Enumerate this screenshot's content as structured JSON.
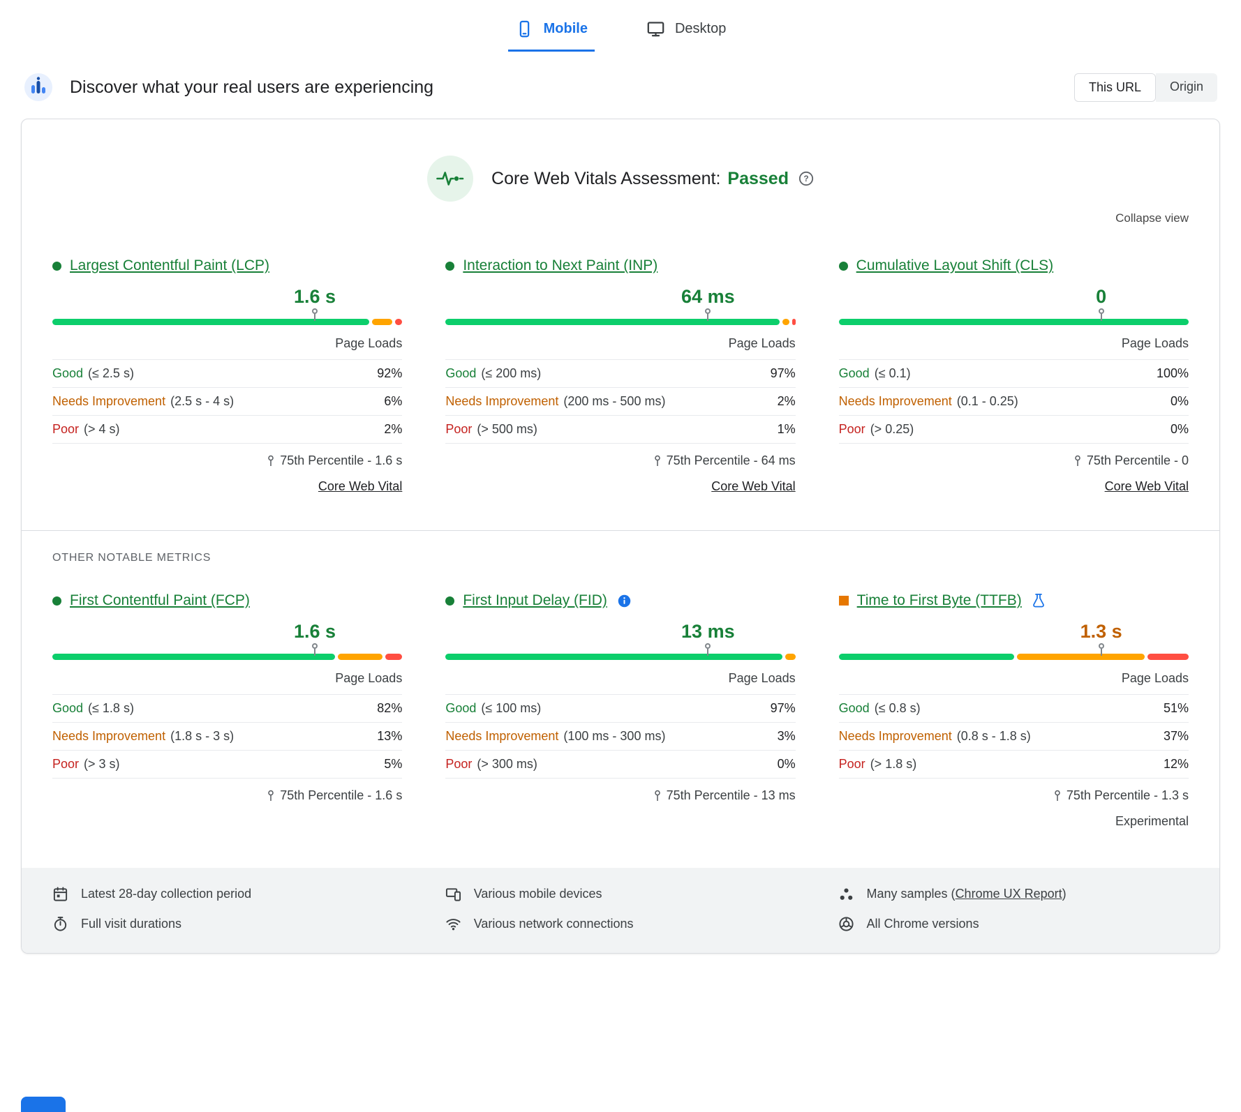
{
  "tabs": {
    "mobile": "Mobile",
    "desktop": "Desktop"
  },
  "header": {
    "title": "Discover what your real users are experiencing",
    "this_url": "This URL",
    "origin": "Origin"
  },
  "assessment": {
    "label": "Core Web Vitals Assessment:",
    "result": "Passed",
    "collapse": "Collapse view"
  },
  "sections": {
    "other_metrics": "OTHER NOTABLE METRICS"
  },
  "metrics": [
    {
      "name": "Largest Contentful Paint (LCP)",
      "value": "1.6 s",
      "page_loads": "Page Loads",
      "rows": [
        {
          "label": "Good",
          "range": "(≤ 2.5 s)",
          "pct": "92%"
        },
        {
          "label": "Needs Improvement",
          "range": "(2.5 s - 4 s)",
          "pct": "6%"
        },
        {
          "label": "Poor",
          "range": "(> 4 s)",
          "pct": "2%"
        }
      ],
      "percentile": "75th Percentile - 1.6 s",
      "link": "Core Web Vital",
      "bar": {
        "good": 92,
        "ni": 6,
        "poor": 2,
        "marker": 75
      }
    },
    {
      "name": "Interaction to Next Paint (INP)",
      "value": "64 ms",
      "page_loads": "Page Loads",
      "rows": [
        {
          "label": "Good",
          "range": "(≤ 200 ms)",
          "pct": "97%"
        },
        {
          "label": "Needs Improvement",
          "range": "(200 ms - 500 ms)",
          "pct": "2%"
        },
        {
          "label": "Poor",
          "range": "(> 500 ms)",
          "pct": "1%"
        }
      ],
      "percentile": "75th Percentile - 64 ms",
      "link": "Core Web Vital",
      "bar": {
        "good": 97,
        "ni": 2,
        "poor": 1,
        "marker": 75
      }
    },
    {
      "name": "Cumulative Layout Shift (CLS)",
      "value": "0",
      "page_loads": "Page Loads",
      "rows": [
        {
          "label": "Good",
          "range": "(≤ 0.1)",
          "pct": "100%"
        },
        {
          "label": "Needs Improvement",
          "range": "(0.1 - 0.25)",
          "pct": "0%"
        },
        {
          "label": "Poor",
          "range": "(> 0.25)",
          "pct": "0%"
        }
      ],
      "percentile": "75th Percentile - 0",
      "link": "Core Web Vital",
      "bar": {
        "good": 100,
        "ni": 0,
        "poor": 0,
        "marker": 75
      }
    },
    {
      "name": "First Contentful Paint (FCP)",
      "value": "1.6 s",
      "page_loads": "Page Loads",
      "rows": [
        {
          "label": "Good",
          "range": "(≤ 1.8 s)",
          "pct": "82%"
        },
        {
          "label": "Needs Improvement",
          "range": "(1.8 s - 3 s)",
          "pct": "13%"
        },
        {
          "label": "Poor",
          "range": "(> 3 s)",
          "pct": "5%"
        }
      ],
      "percentile": "75th Percentile - 1.6 s",
      "bar": {
        "good": 82,
        "ni": 13,
        "poor": 5,
        "marker": 75
      }
    },
    {
      "name": "First Input Delay (FID)",
      "value": "13 ms",
      "page_loads": "Page Loads",
      "rows": [
        {
          "label": "Good",
          "range": "(≤ 100 ms)",
          "pct": "97%"
        },
        {
          "label": "Needs Improvement",
          "range": "(100 ms - 300 ms)",
          "pct": "3%"
        },
        {
          "label": "Poor",
          "range": "(> 300 ms)",
          "pct": "0%"
        }
      ],
      "percentile": "75th Percentile - 13 ms",
      "bar": {
        "good": 97,
        "ni": 3,
        "poor": 0,
        "marker": 75
      }
    },
    {
      "name": "Time to First Byte (TTFB)",
      "value": "1.3 s",
      "page_loads": "Page Loads",
      "rows": [
        {
          "label": "Good",
          "range": "(≤ 0.8 s)",
          "pct": "51%"
        },
        {
          "label": "Needs Improvement",
          "range": "(0.8 s - 1.8 s)",
          "pct": "37%"
        },
        {
          "label": "Poor",
          "range": "(> 1.8 s)",
          "pct": "12%"
        }
      ],
      "percentile": "75th Percentile - 1.3 s",
      "note": "Experimental",
      "bar": {
        "good": 51,
        "ni": 37,
        "poor": 12,
        "marker": 75
      }
    }
  ],
  "footer": {
    "collection_period": "Latest 28-day collection period",
    "visit_durations": "Full visit durations",
    "devices": "Various mobile devices",
    "connections": "Various network connections",
    "samples_prefix": "Many samples (",
    "samples_link": "Chrome UX Report",
    "samples_suffix": ")",
    "chrome_versions": "All Chrome versions"
  },
  "colors": {
    "accent": "#1a73e8",
    "good": "#188038",
    "ni": "#c06000",
    "poor": "#c5221f",
    "bar-good": "#0cce6b",
    "bar-ni": "#ffa400",
    "bar-poor": "#ff4e42",
    "ttfb-square": "#e67700",
    "text": "#202124",
    "muted": "#5f6368",
    "border": "#dadce0",
    "row-border": "#e8eaed",
    "footer-bg": "#f1f3f4",
    "assessment-bg": "#e6f4ea"
  }
}
